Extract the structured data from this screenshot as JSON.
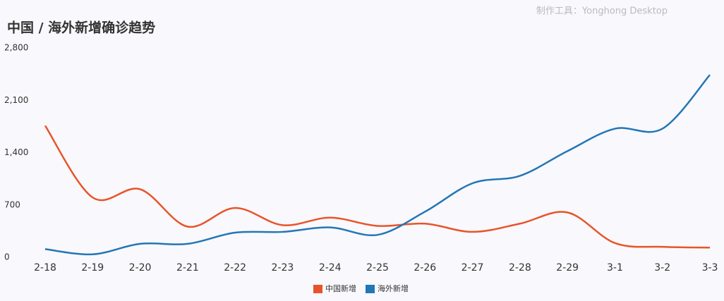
{
  "chart_data": {
    "type": "line",
    "title": "中国 / 海外新增确诊趋势",
    "watermark": "制作工具：Yonghong Desktop",
    "categories": [
      "2-18",
      "2-19",
      "2-20",
      "2-21",
      "2-22",
      "2-23",
      "2-24",
      "2-25",
      "2-26",
      "2-27",
      "2-28",
      "2-29",
      "3-1",
      "3-2",
      "3-3"
    ],
    "series": [
      {
        "name": "中国新增",
        "color": "#e8542a",
        "values": [
          1760,
          800,
          910,
          410,
          660,
          430,
          530,
          420,
          450,
          340,
          450,
          600,
          190,
          140,
          130
        ]
      },
      {
        "name": "海外新增",
        "color": "#2277b6",
        "values": [
          110,
          40,
          180,
          180,
          330,
          340,
          400,
          300,
          610,
          990,
          1090,
          1420,
          1720,
          1720,
          2440
        ]
      }
    ],
    "ylim": [
      0,
      2800
    ],
    "yticks": [
      0,
      700,
      {
        "value": 1400,
        "label": "1,400"
      },
      {
        "value": 2100,
        "label": "2,100"
      },
      {
        "value": 2800,
        "label": "2,800"
      }
    ],
    "grid": false,
    "legend": "bottom"
  }
}
